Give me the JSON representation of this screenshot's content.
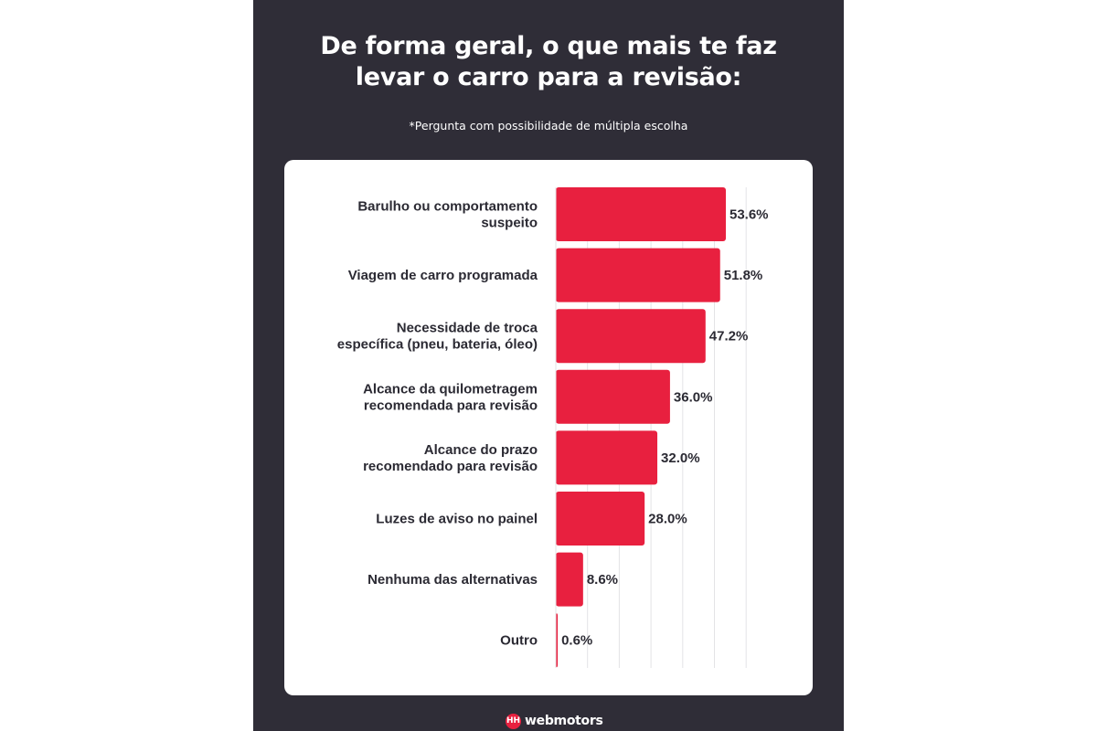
{
  "header": {
    "title_line1": "De forma geral, o que mais te faz",
    "title_line2": "levar o carro para a revisão:",
    "subtitle": "*Pergunta com possibilidade de múltipla escolha"
  },
  "footer": {
    "brand": "webmotors",
    "logo_glyph": "HH"
  },
  "colors": {
    "background_panel": "#2f2d37",
    "bar": "#e8203f",
    "card": "#ffffff",
    "label_text": "#2b2a33",
    "grid": "#e3e3e6"
  },
  "chart_data": {
    "type": "bar",
    "orientation": "horizontal",
    "title": "De forma geral, o que mais te faz levar o carro para a revisão:",
    "subtitle": "*Pergunta com possibilidade de múltipla escolha",
    "categories": [
      [
        "Barulho ou comportamento",
        "suspeito"
      ],
      [
        "Viagem de carro programada"
      ],
      [
        "Necessidade de troca",
        "específica (pneu, bateria, óleo)"
      ],
      [
        "Alcance da quilometragem",
        "recomendada para revisão"
      ],
      [
        "Alcance do prazo",
        "recomendado para revisão"
      ],
      [
        "Luzes de aviso no painel"
      ],
      [
        "Nenhuma das alternativas"
      ],
      [
        "Outro"
      ]
    ],
    "values": [
      53.6,
      51.8,
      47.2,
      36.0,
      32.0,
      28.0,
      8.6,
      0.6
    ],
    "value_labels": [
      "53.6%",
      "51.8%",
      "47.2%",
      "36.0%",
      "32.0%",
      "28.0%",
      "8.6%",
      "0.6%"
    ],
    "xlim": [
      0,
      60
    ],
    "grid_step": 10,
    "grid": true,
    "xlabel": "",
    "ylabel": ""
  }
}
